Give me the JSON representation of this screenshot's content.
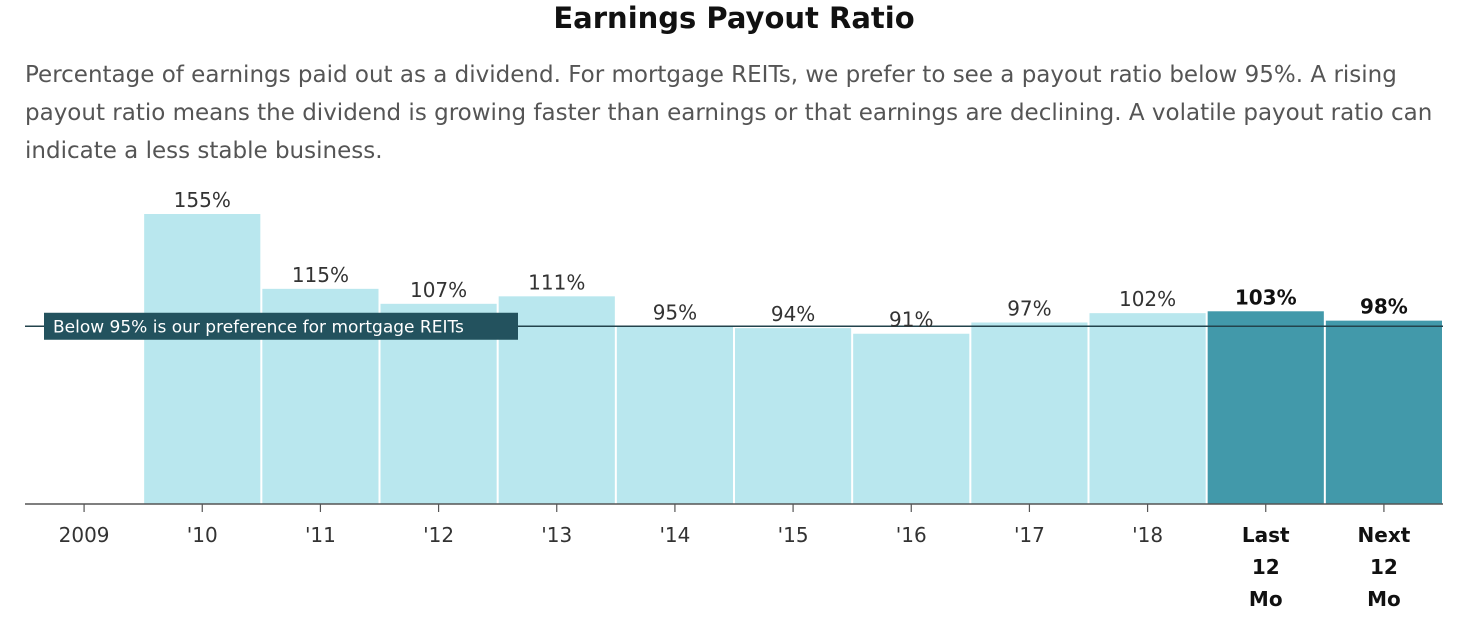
{
  "title": "Earnings Payout Ratio",
  "subtitle": "Percentage of earnings paid out as a dividend. For mortgage REITs, we prefer to see a payout ratio below 95%. A rising payout ratio means the dividend is growing faster than earnings or that earnings are declining. A volatile payout ratio can indicate a less stable business.",
  "colors": {
    "bar": "#b9e7ee",
    "bar_highlight": "#4299aa",
    "ref_line": "#23434c",
    "ref_box": "#23525e"
  },
  "chart_data": {
    "type": "bar",
    "categories": [
      "2009",
      "'10",
      "'11",
      "'12",
      "'13",
      "'14",
      "'15",
      "'16",
      "'17",
      "'18",
      "Last 12 Mo",
      "Next 12 Mo"
    ],
    "category_lines": [
      [
        "2009"
      ],
      [
        "'10"
      ],
      [
        "'11"
      ],
      [
        "'12"
      ],
      [
        "'13"
      ],
      [
        "'14"
      ],
      [
        "'15"
      ],
      [
        "'16"
      ],
      [
        "'17"
      ],
      [
        "'18"
      ],
      [
        "Last",
        "12",
        "Mo"
      ],
      [
        "Next",
        "12",
        "Mo"
      ]
    ],
    "values": [
      null,
      155,
      115,
      107,
      111,
      95,
      94,
      91,
      97,
      102,
      103,
      98
    ],
    "labels": [
      "",
      "155%",
      "115%",
      "107%",
      "111%",
      "95%",
      "94%",
      "91%",
      "97%",
      "102%",
      "103%",
      "98%"
    ],
    "highlighted": [
      false,
      false,
      false,
      false,
      false,
      false,
      false,
      false,
      false,
      false,
      true,
      true
    ],
    "ylim": [
      0,
      155
    ],
    "reference_line": {
      "value": 95,
      "label": "Below 95% is our preference for mortgage REITs"
    }
  }
}
